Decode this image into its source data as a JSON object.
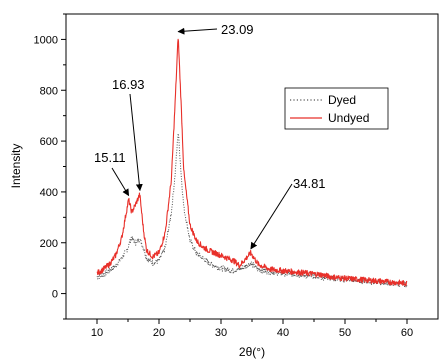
{
  "chart_data": {
    "type": "line",
    "xlabel": "2θ(°)",
    "ylabel": "Intensity",
    "xlim": [
      5,
      65
    ],
    "ylim": [
      -100,
      1100
    ],
    "x_ticks": [
      10,
      20,
      30,
      40,
      50,
      60
    ],
    "y_ticks": [
      0,
      200,
      400,
      600,
      800,
      1000
    ],
    "legend_position": "right",
    "series": [
      {
        "name": "Dyed",
        "color": "#555555",
        "style": "dotted",
        "x": [
          10,
          11,
          12,
          13,
          14,
          15,
          15.5,
          16.2,
          16.9,
          17.5,
          18,
          19,
          20,
          21,
          22,
          22.6,
          23.1,
          23.6,
          24,
          25,
          26,
          27,
          28,
          30,
          32,
          33,
          34.8,
          36,
          38,
          40,
          42,
          44,
          46,
          48,
          50,
          55,
          60
        ],
        "y": [
          65,
          75,
          90,
          110,
          140,
          180,
          220,
          200,
          215,
          180,
          140,
          120,
          130,
          180,
          320,
          470,
          640,
          460,
          340,
          210,
          160,
          140,
          120,
          100,
          90,
          95,
          120,
          95,
          85,
          80,
          75,
          70,
          65,
          60,
          55,
          45,
          35
        ]
      },
      {
        "name": "Undyed",
        "color": "#e8302a",
        "style": "solid",
        "x": [
          10,
          11,
          12,
          13,
          14,
          14.5,
          15.1,
          15.6,
          16.2,
          16.9,
          17.5,
          18,
          19,
          20,
          21,
          22,
          22.6,
          23.09,
          23.6,
          24,
          25,
          26,
          27,
          28,
          30,
          32,
          33,
          34.81,
          36,
          38,
          40,
          42,
          44,
          46,
          48,
          50,
          55,
          60
        ],
        "y": [
          80,
          95,
          115,
          150,
          220,
          290,
          370,
          320,
          350,
          390,
          250,
          170,
          145,
          160,
          240,
          450,
          750,
          1015,
          730,
          480,
          270,
          210,
          185,
          170,
          150,
          130,
          110,
          160,
          115,
          95,
          90,
          85,
          80,
          75,
          65,
          60,
          50,
          40
        ]
      }
    ],
    "annotations": [
      {
        "text": "15.11",
        "x": 15.11,
        "y": 370
      },
      {
        "text": "16.93",
        "x": 16.93,
        "y": 390
      },
      {
        "text": "23.09",
        "x": 23.09,
        "y": 1015
      },
      {
        "text": "34.81",
        "x": 34.81,
        "y": 160
      }
    ]
  }
}
